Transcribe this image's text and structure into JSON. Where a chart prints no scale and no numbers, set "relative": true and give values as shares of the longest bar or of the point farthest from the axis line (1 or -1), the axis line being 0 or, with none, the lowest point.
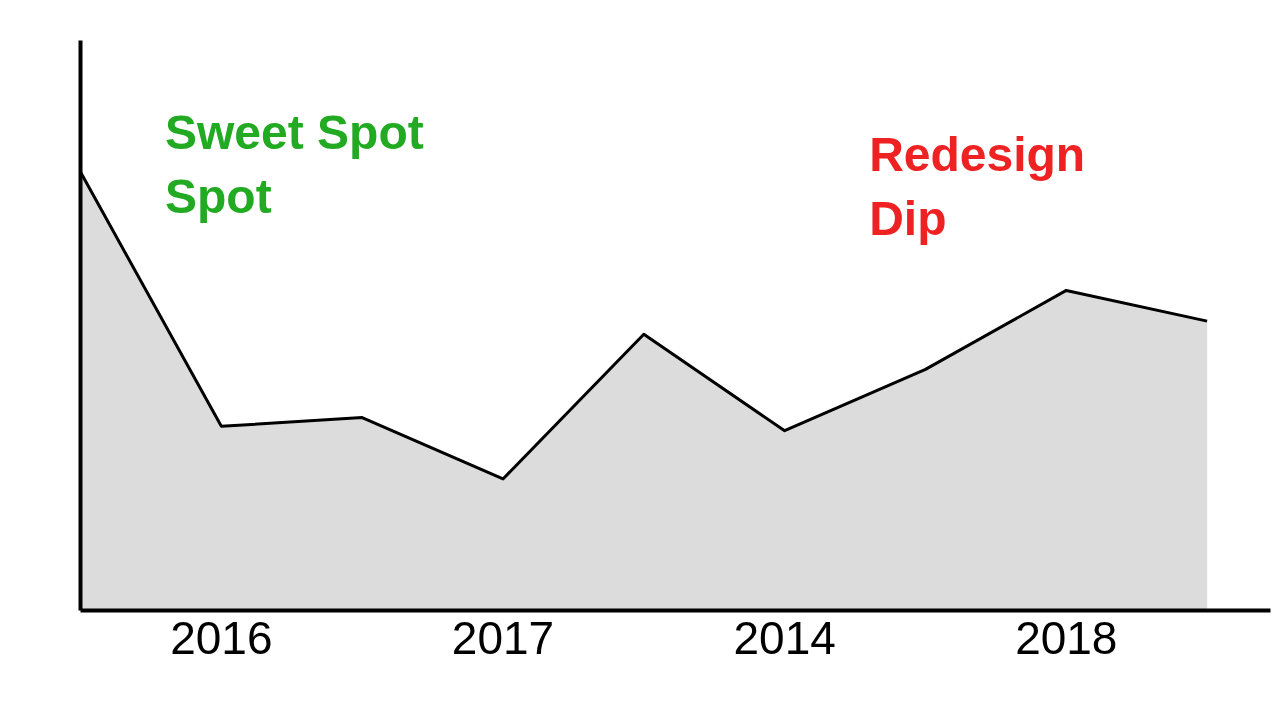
{
  "chart_data": {
    "type": "area",
    "relative": true,
    "categories": [
      null,
      "2016",
      null,
      "2017",
      null,
      "2014",
      null,
      "2018",
      null
    ],
    "series": [
      {
        "color": "#dcdcdc",
        "values": [
          1,
          0.42,
          0.44,
          0.3,
          0.63,
          0.41,
          0.55,
          0.73,
          0.66
        ]
      }
    ],
    "annotations": [
      "Sweet Spot\nSpot",
      "Redesign\nDip"
    ],
    "grid": false
  }
}
